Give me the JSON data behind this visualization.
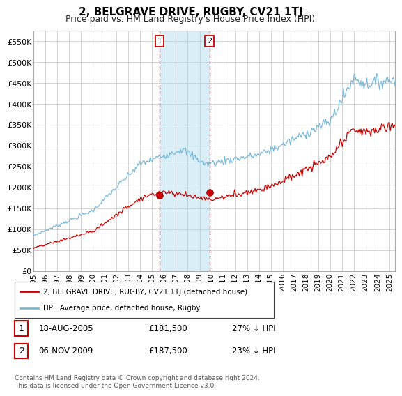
{
  "title": "2, BELGRAVE DRIVE, RUGBY, CV21 1TJ",
  "subtitle": "Price paid vs. HM Land Registry's House Price Index (HPI)",
  "ylim": [
    0,
    575000
  ],
  "yticks": [
    0,
    50000,
    100000,
    150000,
    200000,
    250000,
    300000,
    350000,
    400000,
    450000,
    500000,
    550000
  ],
  "ytick_labels": [
    "£0",
    "£50K",
    "£100K",
    "£150K",
    "£200K",
    "£250K",
    "£300K",
    "£350K",
    "£400K",
    "£450K",
    "£500K",
    "£550K"
  ],
  "xlim_start": 1995.0,
  "xlim_end": 2025.5,
  "xtick_years": [
    1995,
    1996,
    1997,
    1998,
    1999,
    2000,
    2001,
    2002,
    2003,
    2004,
    2005,
    2006,
    2007,
    2008,
    2009,
    2010,
    2011,
    2012,
    2013,
    2014,
    2015,
    2016,
    2017,
    2018,
    2019,
    2020,
    2021,
    2022,
    2023,
    2024,
    2025
  ],
  "hpi_color": "#7ab8d8",
  "price_color": "#cc0000",
  "sale1_x": 2005.625,
  "sale1_y": 181500,
  "sale2_x": 2009.833,
  "sale2_y": 187500,
  "shade_x1": 2005.625,
  "shade_x2": 2009.833,
  "shade_color": "#daeef8",
  "vline_color": "#cc0000",
  "legend_label_red": "2, BELGRAVE DRIVE, RUGBY, CV21 1TJ (detached house)",
  "legend_label_blue": "HPI: Average price, detached house, Rugby",
  "annotation1_date": "18-AUG-2005",
  "annotation1_price": "£181,500",
  "annotation1_hpi": "27% ↓ HPI",
  "annotation2_date": "06-NOV-2009",
  "annotation2_price": "£187,500",
  "annotation2_hpi": "23% ↓ HPI",
  "footer": "Contains HM Land Registry data © Crown copyright and database right 2024.\nThis data is licensed under the Open Government Licence v3.0.",
  "bg_color": "#ffffff",
  "grid_color": "#cccccc",
  "title_fontsize": 11,
  "subtitle_fontsize": 9
}
